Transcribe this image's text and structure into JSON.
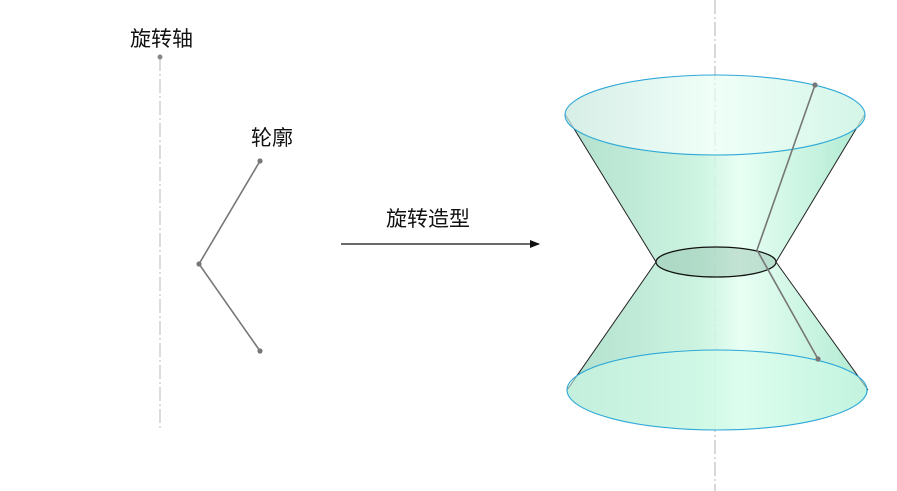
{
  "labels": {
    "axis": "旋转轴",
    "profile": "轮廓",
    "operation": "旋转造型"
  },
  "colors": {
    "surface_fill": "#a6e2c8",
    "surface_highlight": "#e2fff1",
    "rim_stroke": "#2fa8d8",
    "line_gray": "#777777",
    "axis_gray": "#b8b8b8",
    "edge_dark": "#222222"
  },
  "icons": {
    "arrow": "right-arrow-icon"
  }
}
